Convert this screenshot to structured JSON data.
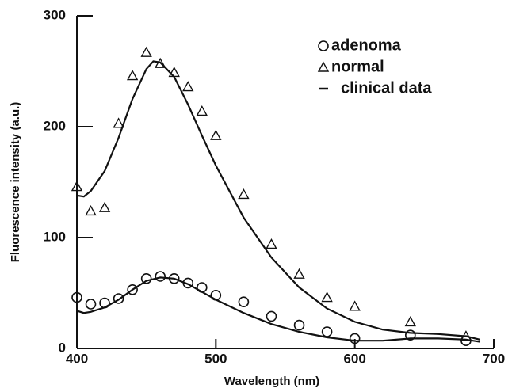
{
  "chart_data": {
    "type": "scatter",
    "x_label": "Wavelength (nm)",
    "y_label": "Fluorescence intensity (a.u.)",
    "xlim": [
      400,
      700
    ],
    "xticks": [
      400,
      500,
      600,
      700
    ],
    "ylim": [
      0,
      300
    ],
    "yticks": [
      0,
      100,
      200,
      300
    ],
    "legend": "upper right",
    "series": [
      {
        "name": "adenoma",
        "marker": "circle",
        "color": "#111111",
        "x": [
          400,
          410,
          420,
          430,
          440,
          450,
          460,
          470,
          480,
          490,
          500,
          520,
          540,
          560,
          580,
          600,
          640,
          680
        ],
        "values": [
          46,
          40,
          41,
          45,
          53,
          63,
          65,
          63,
          59,
          55,
          48,
          42,
          29,
          21,
          15,
          9,
          12,
          7
        ]
      },
      {
        "name": "normal",
        "marker": "triangle",
        "color": "#111111",
        "x": [
          400,
          410,
          420,
          430,
          440,
          450,
          460,
          470,
          480,
          490,
          500,
          520,
          540,
          560,
          580,
          600,
          640,
          680
        ],
        "values": [
          146,
          124,
          127,
          203,
          246,
          267,
          257,
          249,
          236,
          214,
          192,
          139,
          94,
          67,
          46,
          38,
          24,
          11
        ]
      },
      {
        "name": "clinical data",
        "marker": "line",
        "color": "#111111",
        "curves": [
          {
            "x": [
              400,
              405,
              410,
              420,
              430,
              440,
              450,
              455,
              460,
              470,
              480,
              490,
              500,
              520,
              540,
              560,
              580,
              600,
              620,
              640,
              660,
              680,
              690
            ],
            "values": [
              138,
              137,
              142,
              160,
              190,
              225,
              252,
              259,
              258,
              245,
              220,
              192,
              165,
              118,
              82,
              55,
              36,
              24,
              17,
              14,
              13,
              11,
              8
            ]
          },
          {
            "x": [
              400,
              405,
              410,
              420,
              430,
              440,
              450,
              460,
              470,
              480,
              490,
              500,
              520,
              540,
              560,
              580,
              600,
              620,
              640,
              660,
              680,
              690
            ],
            "values": [
              34,
              32,
              33,
              37,
              44,
              53,
              61,
              64,
              63,
              58,
              51,
              44,
              32,
              22,
              15,
              10,
              7,
              7,
              9,
              9,
              8,
              6
            ]
          }
        ]
      }
    ]
  }
}
